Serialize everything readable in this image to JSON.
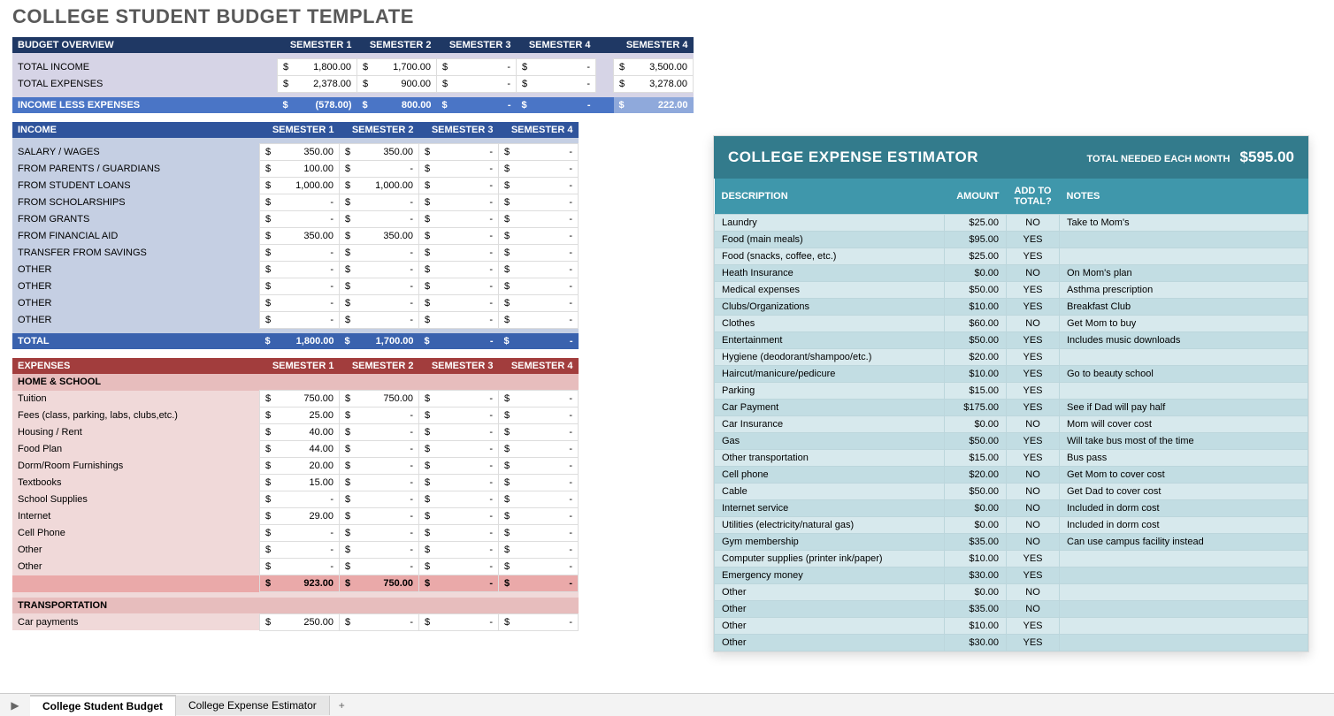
{
  "page_title": "COLLEGE STUDENT BUDGET TEMPLATE",
  "colors": {
    "overview_hdr": "#1f3864",
    "overview_body": "#d6d4e6",
    "ile": "#4a75c6",
    "ile_end": "#8fa9db",
    "income_hdr": "#2f549c",
    "income_body": "#c5cfe3",
    "income_total": "#3a62ae",
    "exp_hdr": "#a23d3d",
    "exp_body": "#f0d9d9",
    "exp_sub": "#e7bdbd",
    "exp_subtotal": "#eaa9a9",
    "est_hdr": "#337b8c",
    "est_thrd": "#3f97ab",
    "est_row_even": "#d7e9ed",
    "est_row_odd": "#c2dde3"
  },
  "overview": {
    "label": "BUDGET OVERVIEW",
    "cols": [
      "SEMESTER 1",
      "SEMESTER 2",
      "SEMESTER 3",
      "SEMESTER 4",
      "SEMESTER 4"
    ],
    "rows": [
      {
        "label": "TOTAL INCOME",
        "v": [
          "1,800.00",
          "1,700.00",
          "-",
          "-",
          "3,500.00"
        ]
      },
      {
        "label": "TOTAL EXPENSES",
        "v": [
          "2,378.00",
          "900.00",
          "-",
          "-",
          "3,278.00"
        ]
      }
    ],
    "ile_label": "INCOME LESS EXPENSES",
    "ile": [
      "(578.00)",
      "800.00",
      "-",
      "-",
      "222.00"
    ]
  },
  "income": {
    "label": "INCOME",
    "cols": [
      "SEMESTER 1",
      "SEMESTER 2",
      "SEMESTER 3",
      "SEMESTER 4"
    ],
    "rows": [
      {
        "label": "SALARY / WAGES",
        "v": [
          "350.00",
          "350.00",
          "-",
          "-"
        ]
      },
      {
        "label": "FROM PARENTS / GUARDIANS",
        "v": [
          "100.00",
          "-",
          "-",
          "-"
        ]
      },
      {
        "label": "FROM STUDENT LOANS",
        "v": [
          "1,000.00",
          "1,000.00",
          "-",
          "-"
        ]
      },
      {
        "label": "FROM SCHOLARSHIPS",
        "v": [
          "-",
          "-",
          "-",
          "-"
        ]
      },
      {
        "label": "FROM GRANTS",
        "v": [
          "-",
          "-",
          "-",
          "-"
        ]
      },
      {
        "label": "FROM FINANCIAL AID",
        "v": [
          "350.00",
          "350.00",
          "-",
          "-"
        ]
      },
      {
        "label": "TRANSFER FROM SAVINGS",
        "v": [
          "-",
          "-",
          "-",
          "-"
        ]
      },
      {
        "label": "OTHER",
        "v": [
          "-",
          "-",
          "-",
          "-"
        ]
      },
      {
        "label": "OTHER",
        "v": [
          "-",
          "-",
          "-",
          "-"
        ]
      },
      {
        "label": "OTHER",
        "v": [
          "-",
          "-",
          "-",
          "-"
        ]
      },
      {
        "label": "OTHER",
        "v": [
          "-",
          "-",
          "-",
          "-"
        ]
      }
    ],
    "total_label": "TOTAL",
    "totals": [
      "1,800.00",
      "1,700.00",
      "-",
      "-"
    ]
  },
  "expenses": {
    "label": "EXPENSES",
    "cols": [
      "SEMESTER 1",
      "SEMESTER 2",
      "SEMESTER 3",
      "SEMESTER 4"
    ],
    "groups": [
      {
        "name": "HOME & SCHOOL",
        "rows": [
          {
            "label": "Tuition",
            "v": [
              "750.00",
              "750.00",
              "-",
              "-"
            ]
          },
          {
            "label": "Fees (class, parking, labs, clubs,etc.)",
            "v": [
              "25.00",
              "-",
              "-",
              "-"
            ]
          },
          {
            "label": "Housing / Rent",
            "v": [
              "40.00",
              "-",
              "-",
              "-"
            ]
          },
          {
            "label": "Food Plan",
            "v": [
              "44.00",
              "-",
              "-",
              "-"
            ]
          },
          {
            "label": "Dorm/Room Furnishings",
            "v": [
              "20.00",
              "-",
              "-",
              "-"
            ]
          },
          {
            "label": "Textbooks",
            "v": [
              "15.00",
              "-",
              "-",
              "-"
            ]
          },
          {
            "label": "School Supplies",
            "v": [
              "-",
              "-",
              "-",
              "-"
            ]
          },
          {
            "label": "Internet",
            "v": [
              "29.00",
              "-",
              "-",
              "-"
            ]
          },
          {
            "label": "Cell Phone",
            "v": [
              "-",
              "-",
              "-",
              "-"
            ]
          },
          {
            "label": "Other",
            "v": [
              "-",
              "-",
              "-",
              "-"
            ]
          },
          {
            "label": "Other",
            "v": [
              "-",
              "-",
              "-",
              "-"
            ]
          }
        ],
        "subtotal": [
          "923.00",
          "750.00",
          "-",
          "-"
        ]
      },
      {
        "name": "TRANSPORTATION",
        "rows": [
          {
            "label": "Car payments",
            "v": [
              "250.00",
              "-",
              "-",
              "-"
            ]
          }
        ]
      }
    ]
  },
  "estimator": {
    "title": "COLLEGE EXPENSE ESTIMATOR",
    "need_label": "TOTAL NEEDED EACH MONTH",
    "need_amount": "$595.00",
    "headers": [
      "DESCRIPTION",
      "AMOUNT",
      "ADD TO TOTAL?",
      "NOTES"
    ],
    "rows": [
      {
        "d": "Laundry",
        "a": "$25.00",
        "t": "NO",
        "n": "Take to Mom's"
      },
      {
        "d": "Food (main meals)",
        "a": "$95.00",
        "t": "YES",
        "n": ""
      },
      {
        "d": "Food (snacks, coffee, etc.)",
        "a": "$25.00",
        "t": "YES",
        "n": ""
      },
      {
        "d": "Heath Insurance",
        "a": "$0.00",
        "t": "NO",
        "n": "On Mom's plan"
      },
      {
        "d": "Medical expenses",
        "a": "$50.00",
        "t": "YES",
        "n": "Asthma prescription"
      },
      {
        "d": "Clubs/Organizations",
        "a": "$10.00",
        "t": "YES",
        "n": "Breakfast Club"
      },
      {
        "d": "Clothes",
        "a": "$60.00",
        "t": "NO",
        "n": "Get Mom to buy"
      },
      {
        "d": "Entertainment",
        "a": "$50.00",
        "t": "YES",
        "n": "Includes music downloads"
      },
      {
        "d": "Hygiene (deodorant/shampoo/etc.)",
        "a": "$20.00",
        "t": "YES",
        "n": ""
      },
      {
        "d": "Haircut/manicure/pedicure",
        "a": "$10.00",
        "t": "YES",
        "n": "Go to beauty school"
      },
      {
        "d": "Parking",
        "a": "$15.00",
        "t": "YES",
        "n": ""
      },
      {
        "d": "Car Payment",
        "a": "$175.00",
        "t": "YES",
        "n": "See if Dad will pay half"
      },
      {
        "d": "Car Insurance",
        "a": "$0.00",
        "t": "NO",
        "n": "Mom will cover cost"
      },
      {
        "d": "Gas",
        "a": "$50.00",
        "t": "YES",
        "n": "Will take bus most of the time"
      },
      {
        "d": "Other transportation",
        "a": "$15.00",
        "t": "YES",
        "n": "Bus pass"
      },
      {
        "d": "Cell phone",
        "a": "$20.00",
        "t": "NO",
        "n": "Get Mom to cover cost"
      },
      {
        "d": "Cable",
        "a": "$50.00",
        "t": "NO",
        "n": "Get Dad to cover cost"
      },
      {
        "d": "Internet service",
        "a": "$0.00",
        "t": "NO",
        "n": "Included in dorm cost"
      },
      {
        "d": "Utilities (electricity/natural gas)",
        "a": "$0.00",
        "t": "NO",
        "n": "Included in dorm cost"
      },
      {
        "d": "Gym membership",
        "a": "$35.00",
        "t": "NO",
        "n": "Can use campus facility instead"
      },
      {
        "d": "Computer supplies (printer ink/paper)",
        "a": "$10.00",
        "t": "YES",
        "n": ""
      },
      {
        "d": "Emergency money",
        "a": "$30.00",
        "t": "YES",
        "n": ""
      },
      {
        "d": "Other",
        "a": "$0.00",
        "t": "NO",
        "n": ""
      },
      {
        "d": "Other",
        "a": "$35.00",
        "t": "NO",
        "n": ""
      },
      {
        "d": "Other",
        "a": "$10.00",
        "t": "YES",
        "n": ""
      },
      {
        "d": "Other",
        "a": "$30.00",
        "t": "YES",
        "n": ""
      }
    ]
  },
  "tabs": {
    "items": [
      "College Student Budget",
      "College Expense Estimator"
    ],
    "active": 0,
    "add": "+",
    "nav": "▶"
  }
}
